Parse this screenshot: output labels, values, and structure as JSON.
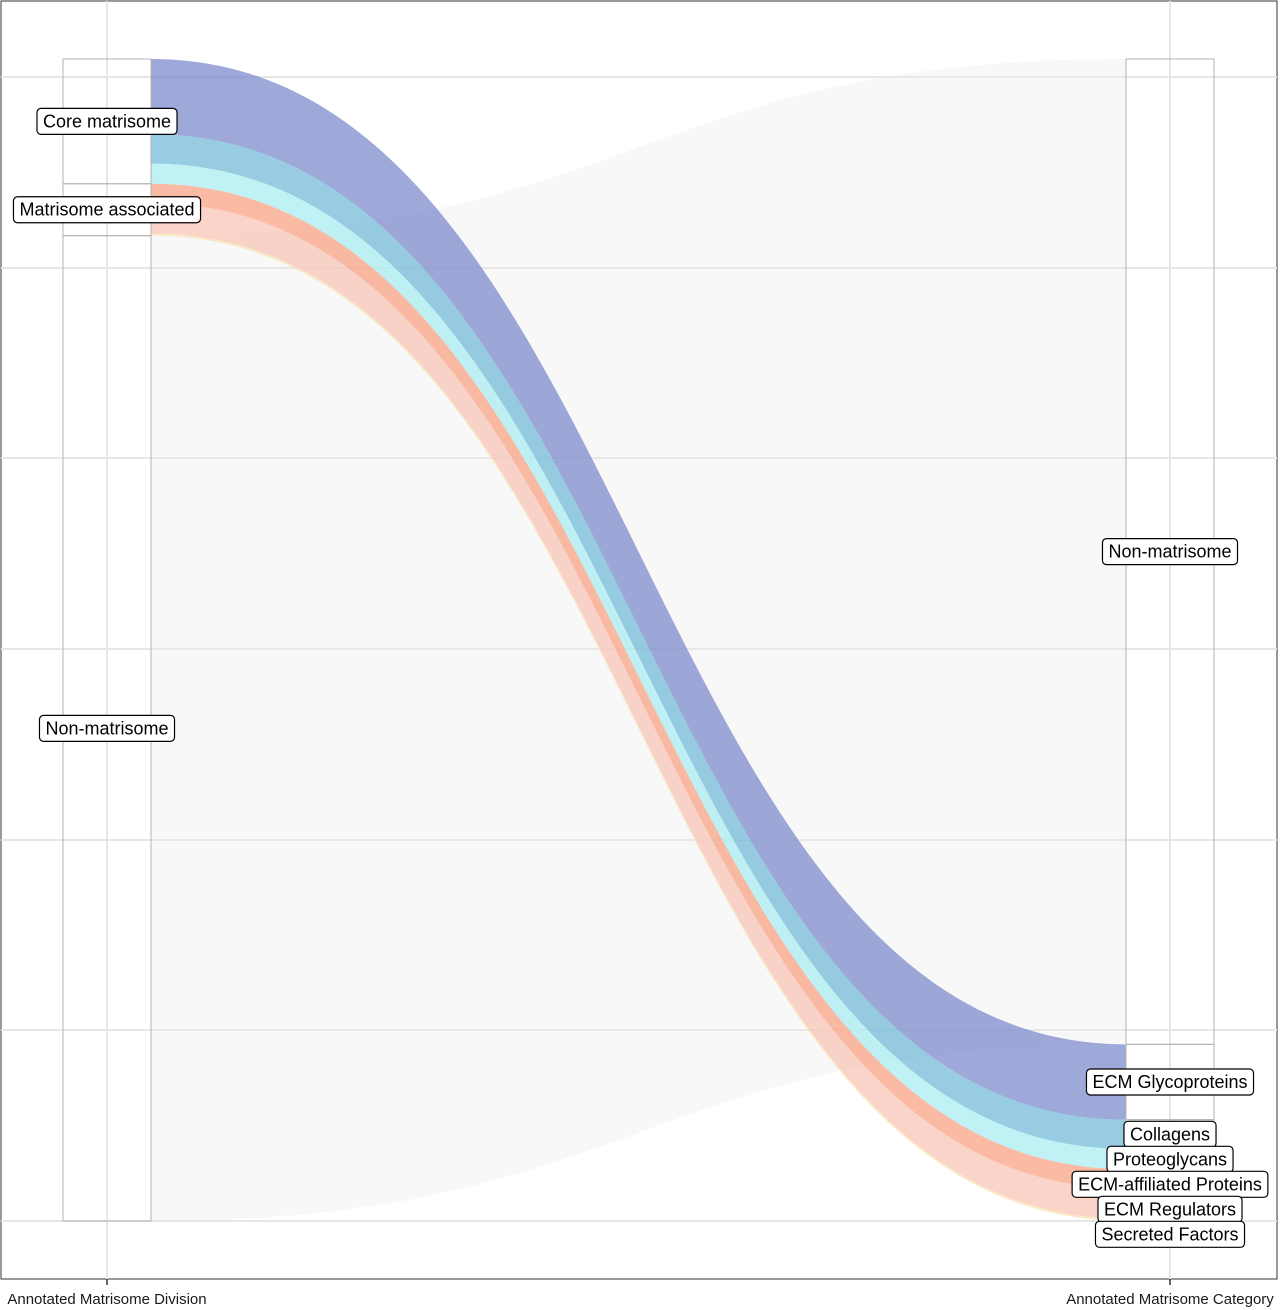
{
  "chart_data": {
    "type": "alluvial",
    "axes": [
      {
        "label": "Annotated Matrisome Division"
      },
      {
        "label": "Annotated Matrisome Category"
      }
    ],
    "nodes_left": [
      "Core matrisome",
      "Matrisome associated",
      "Non-matrisome"
    ],
    "nodes_right": [
      "Non-matrisome",
      "ECM Glycoproteins",
      "Collagens",
      "Proteoglycans",
      "ECM-affiliated Proteins",
      "ECM Regulators",
      "Secreted Factors"
    ],
    "flows": [
      {
        "from": "Core matrisome",
        "to": "ECM Glycoproteins",
        "value": 392,
        "color": "#7986cb"
      },
      {
        "from": "Core matrisome",
        "to": "Collagens",
        "value": 152,
        "color": "#6fb8d8"
      },
      {
        "from": "Core matrisome",
        "to": "Proteoglycans",
        "value": 105,
        "color": "#a8ecf0"
      },
      {
        "from": "Matrisome associated",
        "to": "ECM-affiliated Proteins",
        "value": 100,
        "color": "#f9a080"
      },
      {
        "from": "Matrisome associated",
        "to": "ECM Regulators",
        "value": 158,
        "color": "#f8c4b4"
      },
      {
        "from": "Matrisome associated",
        "to": "Secreted Factors",
        "value": 12,
        "color": "#f8e0b0"
      },
      {
        "from": "Non-matrisome",
        "to": "Non-matrisome",
        "value": 5125,
        "color": "#ebebeb"
      }
    ],
    "grid": true
  }
}
